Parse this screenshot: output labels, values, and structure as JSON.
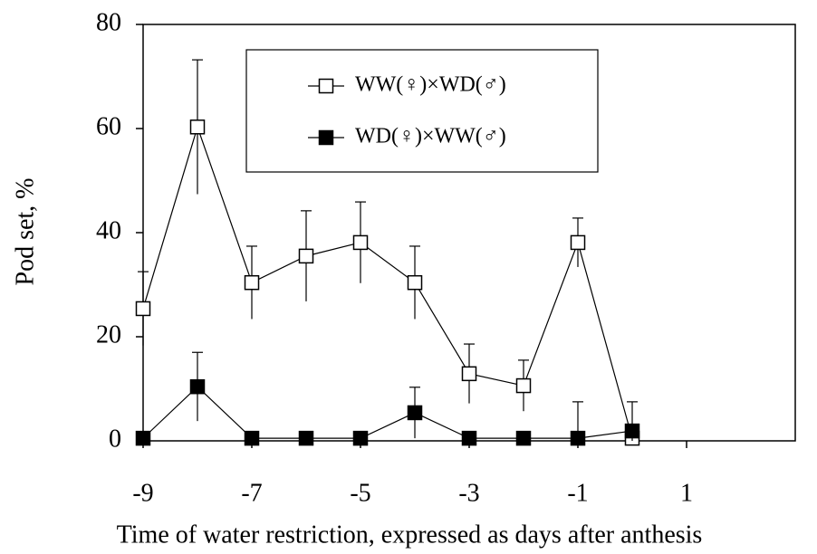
{
  "chart_data": {
    "type": "line",
    "x_label": "Time of water restriction, expressed as days after anthesis",
    "y_label": "Pod set, %",
    "xlim": [
      -9,
      3
    ],
    "xticks": [
      -9,
      -7,
      -5,
      -3,
      -1,
      1
    ],
    "ylim": [
      0,
      80
    ],
    "yticks": [
      0,
      20,
      40,
      60,
      80
    ],
    "x": [
      -9,
      -8,
      -7,
      -6,
      -5,
      -4,
      -3,
      -2,
      -1,
      0
    ],
    "series": [
      {
        "name": "WW(♀)×WD(♂)",
        "color": "#000000",
        "marker": "open-square",
        "values": [
          25.4,
          60.3,
          30.4,
          35.5,
          38.1,
          30.4,
          12.9,
          10.6,
          38.1,
          0.5
        ],
        "errors": [
          7.1,
          12.9,
          7.0,
          8.7,
          7.8,
          7.0,
          5.7,
          4.9,
          4.7,
          null
        ]
      },
      {
        "name": "WD(♀)×WW(♂)",
        "color": "#000000",
        "marker": "filled-square",
        "values": [
          0.5,
          10.4,
          0.5,
          0.5,
          0.5,
          5.4,
          0.5,
          0.5,
          0.5,
          1.9
        ],
        "errors": [
          null,
          6.6,
          null,
          null,
          0.8,
          4.9,
          null,
          null,
          7.0,
          5.6
        ]
      }
    ]
  }
}
